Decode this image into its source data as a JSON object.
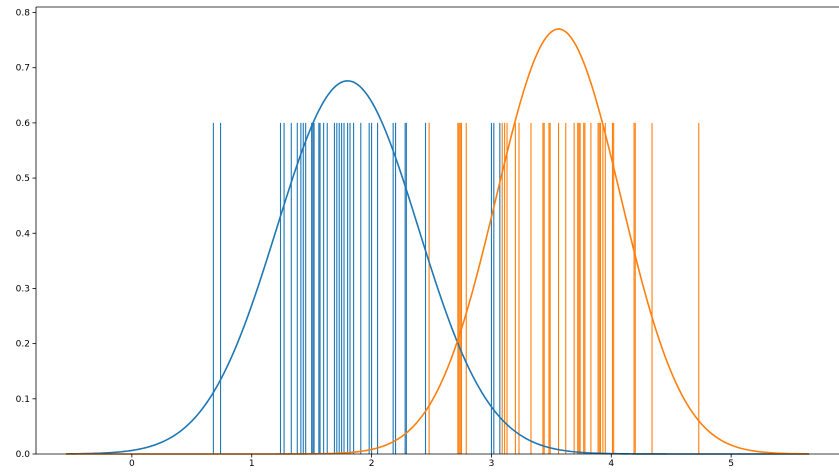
{
  "chart_data": {
    "type": "line",
    "title": "",
    "xlabel": "",
    "ylabel": "",
    "xlim": [
      -0.8,
      5.9
    ],
    "ylim": [
      0,
      0.81
    ],
    "grid": false,
    "x_ticks": [
      0,
      1,
      2,
      3,
      4,
      5
    ],
    "y_ticks": [
      0.0,
      0.1,
      0.2,
      0.3,
      0.4,
      0.5,
      0.6,
      0.7,
      0.8
    ],
    "x_tick_labels": [
      "0",
      "1",
      "2",
      "3",
      "4",
      "5"
    ],
    "y_tick_labels": [
      "0.0",
      "0.1",
      "0.2",
      "0.3",
      "0.4",
      "0.5",
      "0.6",
      "0.7",
      "0.8"
    ],
    "rug_height": 0.6,
    "series": [
      {
        "color": "#1f77b4",
        "curve": {
          "type": "normal-pdf",
          "mean": 1.8,
          "std": 0.59,
          "x_range": [
            -0.55,
            5.65
          ]
        },
        "rug": [
          0.68,
          0.74,
          1.24,
          1.27,
          1.33,
          1.38,
          1.41,
          1.43,
          1.45,
          1.5,
          1.51,
          1.52,
          1.56,
          1.57,
          1.6,
          1.63,
          1.69,
          1.71,
          1.73,
          1.75,
          1.77,
          1.8,
          1.82,
          1.85,
          1.91,
          1.98,
          2.0,
          2.05,
          2.18,
          2.2,
          2.28,
          2.29,
          2.45,
          3.0,
          3.02,
          3.07
        ]
      },
      {
        "color": "#ff7f0e",
        "curve": {
          "type": "normal-pdf",
          "mean": 3.56,
          "std": 0.518,
          "x_range": [
            -0.55,
            5.65
          ]
        },
        "rug": [
          2.48,
          2.72,
          2.73,
          2.74,
          2.75,
          2.79,
          3.09,
          3.11,
          3.13,
          3.2,
          3.23,
          3.33,
          3.43,
          3.44,
          3.48,
          3.49,
          3.56,
          3.62,
          3.69,
          3.72,
          3.73,
          3.74,
          3.77,
          3.78,
          3.83,
          3.89,
          3.9,
          3.91,
          3.93,
          3.95,
          4.01,
          4.02,
          4.19,
          4.2,
          4.34,
          4.73
        ]
      }
    ]
  }
}
